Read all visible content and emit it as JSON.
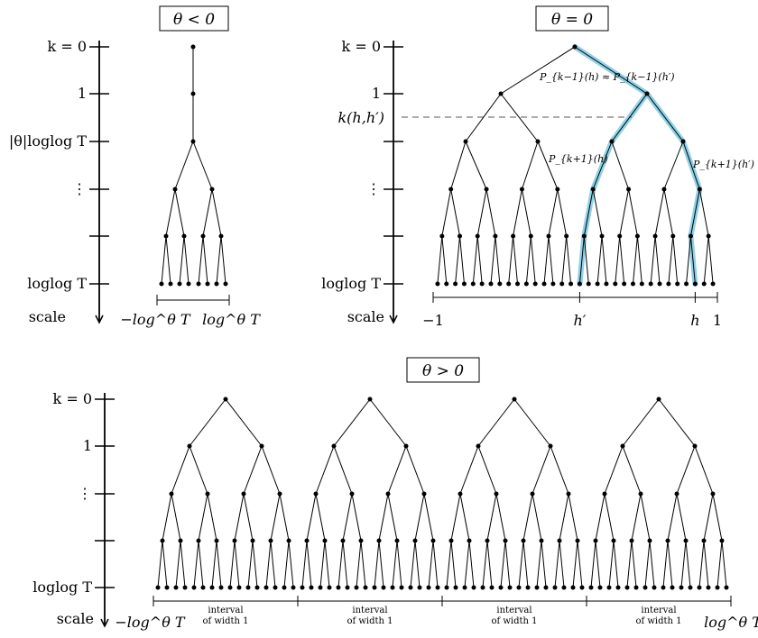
{
  "panels": [
    {
      "id": "neg",
      "title": "θ < 0",
      "axis_labels": [
        "k = 0",
        "1",
        "|θ|loglog T",
        "⋮",
        "",
        "loglog T"
      ],
      "scale_label": "scale",
      "interval_left": "−log^θ T",
      "interval_right": "log^θ T"
    },
    {
      "id": "zero",
      "title": "θ = 0",
      "axis_labels": [
        "k = 0",
        "1",
        "",
        "⋮",
        "",
        "loglog T"
      ],
      "branch_label": "k(h,h′)",
      "scale_label": "scale",
      "path_labels": {
        "top": "P_{k−1}(h) ≈ P_{k−1}(h′)",
        "left": "P_{k+1}(h)",
        "right": "P_{k+1}(h′)"
      },
      "ticks": [
        "−1",
        "h′",
        "h",
        "1"
      ]
    },
    {
      "id": "pos",
      "title": "θ > 0",
      "axis_labels": [
        "k = 0",
        "1",
        "⋮",
        "",
        "loglog T"
      ],
      "scale_label": "scale",
      "interval_left": "−log^θ T",
      "interval_right": "log^θ T",
      "interval_caption_1": "interval",
      "interval_caption_2": "of width 1"
    }
  ],
  "colors": {
    "highlight": "#8ed1e6",
    "ink": "#000000",
    "dash": "#555555"
  }
}
